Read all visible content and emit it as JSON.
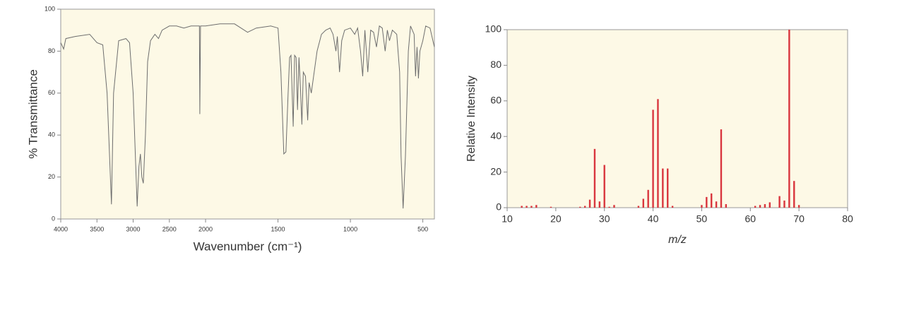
{
  "chart_data": [
    {
      "type": "line",
      "y_label": "% Transmittance",
      "x_label": "Wavenumber (cm⁻¹)",
      "xlim": [
        4000,
        420
      ],
      "x_scale_break": 2000,
      "xticks": [
        4000,
        3500,
        3000,
        2500,
        2000,
        1500,
        1000,
        500
      ],
      "ylim": [
        0,
        100
      ],
      "yticks": [
        0,
        20,
        40,
        60,
        80,
        100
      ],
      "color": "#6e6e6e",
      "background": "#fdf9e6",
      "x": [
        4000,
        3960,
        3930,
        3800,
        3600,
        3500,
        3420,
        3360,
        3300,
        3270,
        3200,
        3100,
        3050,
        3000,
        2945,
        2920,
        2900,
        2880,
        2860,
        2830,
        2800,
        2760,
        2700,
        2650,
        2600,
        2500,
        2400,
        2300,
        2200,
        2150,
        2085,
        2079,
        2070,
        2000,
        1900,
        1800,
        1710,
        1650,
        1550,
        1500,
        1480,
        1460,
        1445,
        1430,
        1420,
        1410,
        1395,
        1385,
        1375,
        1365,
        1355,
        1345,
        1335,
        1325,
        1310,
        1295,
        1285,
        1270,
        1250,
        1230,
        1200,
        1170,
        1140,
        1120,
        1100,
        1090,
        1075,
        1060,
        1040,
        1000,
        970,
        950,
        930,
        915,
        900,
        880,
        860,
        840,
        820,
        800,
        780,
        760,
        745,
        730,
        710,
        680,
        660,
        650,
        636,
        620,
        600,
        585,
        560,
        550,
        540,
        530,
        520,
        500,
        480,
        450,
        430,
        420
      ],
      "values": [
        84,
        81,
        86,
        87,
        88,
        84,
        83,
        60,
        7,
        60,
        85,
        86,
        84,
        60,
        6,
        25,
        31,
        20,
        17,
        40,
        75,
        85,
        88,
        86,
        90,
        92,
        92,
        91,
        92,
        92,
        92,
        50,
        92,
        92,
        93,
        93,
        89,
        91,
        92,
        91,
        70,
        31,
        32,
        60,
        77,
        78,
        44,
        78,
        77,
        52,
        77,
        63,
        45,
        70,
        68,
        47,
        65,
        60,
        70,
        80,
        88,
        90,
        91,
        88,
        80,
        87,
        70,
        85,
        90,
        91,
        88,
        91,
        80,
        68,
        90,
        70,
        90,
        89,
        82,
        92,
        91,
        80,
        90,
        85,
        90,
        88,
        70,
        30,
        5,
        30,
        80,
        92,
        88,
        68,
        82,
        67,
        80,
        85,
        92,
        91,
        85,
        82
      ]
    },
    {
      "type": "bar",
      "y_label": "Relative Intensity",
      "x_label": "m/z",
      "xlim": [
        10,
        80
      ],
      "xticks": [
        10,
        20,
        30,
        40,
        50,
        60,
        70,
        80
      ],
      "ylim": [
        0,
        100
      ],
      "yticks": [
        0,
        20,
        40,
        60,
        80,
        100
      ],
      "color": "#d9363e",
      "background": "#fdf9e6",
      "x": [
        13,
        14,
        15,
        16,
        19,
        25,
        26,
        27,
        28,
        29,
        30,
        31,
        32,
        37,
        38,
        39,
        40,
        41,
        42,
        43,
        44,
        50,
        51,
        52,
        53,
        54,
        55,
        61,
        62,
        63,
        64,
        66,
        67,
        68,
        69,
        70
      ],
      "values": [
        1,
        1,
        1,
        1.5,
        0.5,
        0.5,
        1,
        4.5,
        33,
        3.5,
        24,
        0.5,
        1.5,
        1,
        5,
        10,
        55,
        61,
        22,
        22,
        1,
        1.5,
        6,
        8,
        3.5,
        44,
        2,
        1,
        1.5,
        2,
        3,
        6.5,
        4,
        100,
        15,
        1.5
      ]
    }
  ]
}
